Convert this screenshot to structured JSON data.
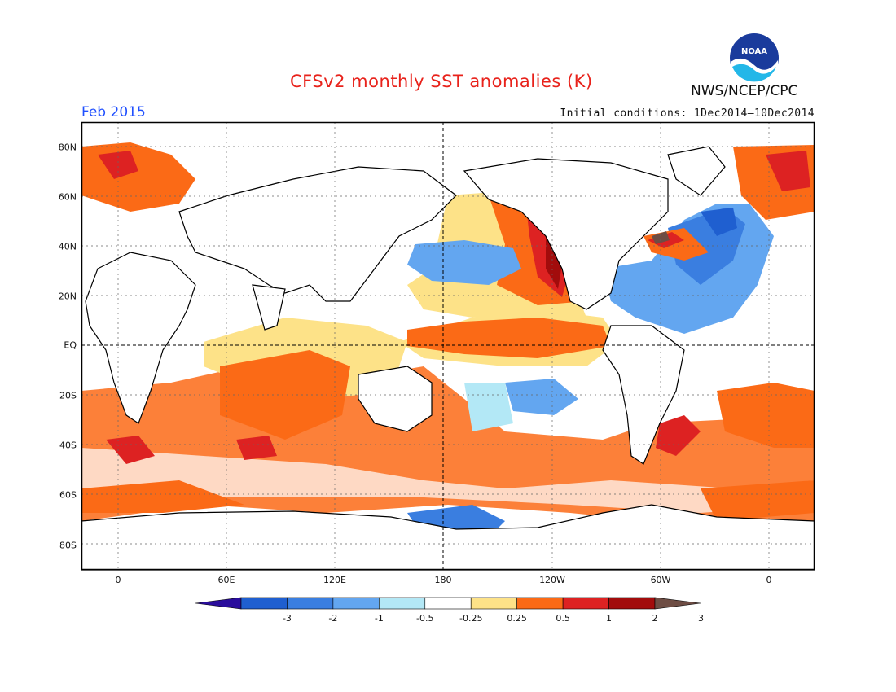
{
  "title": "CFSv2 monthly SST anomalies (K)",
  "agency": "NWS/NCEP/CPC",
  "logo_text": "NOAA",
  "period": "Feb 2015",
  "initial_conditions": "Initial conditions: 1Dec2014—10Dec2014",
  "map": {
    "lat_ticks": [
      "80N",
      "60N",
      "40N",
      "20N",
      "EQ",
      "20S",
      "40S",
      "60S",
      "80S"
    ],
    "lon_ticks": [
      "0",
      "60E",
      "120E",
      "180",
      "120W",
      "60W",
      "0"
    ]
  },
  "legend": {
    "unit": "K",
    "labels": [
      "-3",
      "-2",
      "-1",
      "-0.5",
      "-0.25",
      "0.25",
      "0.5",
      "1",
      "2",
      "3"
    ],
    "colors": [
      "#2a0d9c",
      "#1f5fd0",
      "#3a7ee0",
      "#63a6f0",
      "#b3e8f6",
      "#ffffff",
      "#fde288",
      "#fb6a16",
      "#dd2222",
      "#a20c0c",
      "#6e4d44"
    ]
  }
}
